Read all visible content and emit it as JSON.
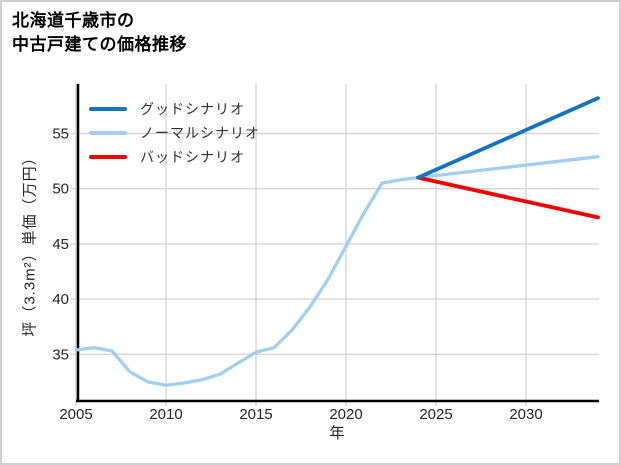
{
  "header": {
    "title_line1": "北海道千歳市の",
    "title_line2": "中古戸建ての価格推移"
  },
  "chart_data": {
    "type": "line",
    "title": "北海道千歳市の中古戸建ての価格推移",
    "xlabel": "年",
    "ylabel": "坪（3.3m²）単価（万円）",
    "xlim": [
      2005,
      2034
    ],
    "ylim": [
      30.8,
      59.3
    ],
    "xticks": [
      2005,
      2010,
      2015,
      2020,
      2025,
      2030
    ],
    "yticks": [
      35,
      40,
      45,
      50,
      55
    ],
    "grid": true,
    "legend_position": "top-left",
    "colors": {
      "good": "#1673c4",
      "normal": "#a3cef2",
      "bad": "#f40000",
      "gridline": "#d6d6d6",
      "axis": "#000000",
      "tick_text": "#262626"
    },
    "series": [
      {
        "name": "グッドシナリオ",
        "color": "#1673c4",
        "x": [
          2024,
          2034
        ],
        "y": [
          51.0,
          58.2
        ]
      },
      {
        "name": "ノーマルシナリオ",
        "color": "#a3cef2",
        "x": [
          2005,
          2006,
          2007,
          2008,
          2009,
          2010,
          2011,
          2012,
          2013,
          2014,
          2015,
          2016,
          2017,
          2018,
          2019,
          2020,
          2021,
          2022,
          2023,
          2024,
          2034
        ],
        "y": [
          35.4,
          35.6,
          35.3,
          33.4,
          32.5,
          32.2,
          32.4,
          32.7,
          33.2,
          34.2,
          35.2,
          35.6,
          37.2,
          39.3,
          41.8,
          44.8,
          47.8,
          50.5,
          50.8,
          51.0,
          52.9
        ]
      },
      {
        "name": "バッドシナリオ",
        "color": "#f40000",
        "x": [
          2024,
          2034
        ],
        "y": [
          51.0,
          47.4
        ]
      }
    ]
  }
}
